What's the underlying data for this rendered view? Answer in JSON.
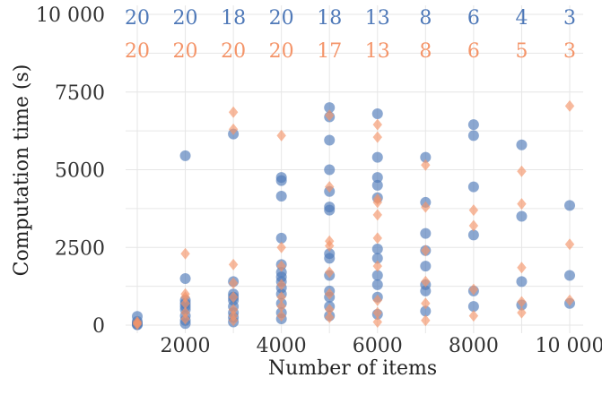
{
  "chart_data": {
    "type": "scatter",
    "title": "",
    "xlabel": "Number of items",
    "ylabel": "Computation time (s)",
    "xlim": [
      1000,
      10000
    ],
    "ylim": [
      0,
      10000
    ],
    "x_ticks": [
      2000,
      4000,
      6000,
      8000,
      10000
    ],
    "x_tick_labels": [
      "2000",
      "4000",
      "6000",
      "8000",
      "10 000"
    ],
    "y_ticks": [
      0,
      2500,
      5000,
      7500,
      10000
    ],
    "y_tick_labels": [
      "0",
      "2500",
      "5000",
      "7500",
      "10 000"
    ],
    "grid": true,
    "legend": "none",
    "count_rows": [
      {
        "color": "#4f79b8",
        "x": [
          1000,
          2000,
          3000,
          4000,
          5000,
          6000,
          7000,
          8000,
          9000,
          10000
        ],
        "labels": [
          "20",
          "20",
          "18",
          "20",
          "18",
          "13",
          "8",
          "6",
          "4",
          "3"
        ]
      },
      {
        "color": "#f4956a",
        "x": [
          1000,
          2000,
          3000,
          4000,
          5000,
          6000,
          7000,
          8000,
          9000,
          10000
        ],
        "labels": [
          "20",
          "20",
          "20",
          "20",
          "17",
          "13",
          "8",
          "6",
          "5",
          "3"
        ]
      }
    ],
    "series": [
      {
        "marker": "circle",
        "color": "#4f79b8",
        "points": [
          [
            1000,
            280
          ],
          [
            1000,
            120
          ],
          [
            1000,
            60
          ],
          [
            1000,
            20
          ],
          [
            1000,
            10
          ],
          [
            2000,
            5450
          ],
          [
            2000,
            1500
          ],
          [
            2000,
            800
          ],
          [
            2000,
            700
          ],
          [
            2000,
            600
          ],
          [
            2000,
            500
          ],
          [
            2000,
            300
          ],
          [
            2000,
            150
          ],
          [
            2000,
            50
          ],
          [
            3000,
            6150
          ],
          [
            3000,
            1400
          ],
          [
            3000,
            1000
          ],
          [
            3000,
            900
          ],
          [
            3000,
            800
          ],
          [
            3000,
            600
          ],
          [
            3000,
            400
          ],
          [
            3000,
            250
          ],
          [
            3000,
            100
          ],
          [
            4000,
            4750
          ],
          [
            4000,
            4650
          ],
          [
            4000,
            4150
          ],
          [
            4000,
            2800
          ],
          [
            4000,
            1950
          ],
          [
            4000,
            1700
          ],
          [
            4000,
            1550
          ],
          [
            4000,
            1400
          ],
          [
            4000,
            1200
          ],
          [
            4000,
            1000
          ],
          [
            4000,
            700
          ],
          [
            4000,
            400
          ],
          [
            4000,
            200
          ],
          [
            5000,
            7000
          ],
          [
            5000,
            6700
          ],
          [
            5000,
            5950
          ],
          [
            5000,
            5000
          ],
          [
            5000,
            4300
          ],
          [
            5000,
            3800
          ],
          [
            5000,
            3700
          ],
          [
            5000,
            2300
          ],
          [
            5000,
            2150
          ],
          [
            5000,
            1600
          ],
          [
            5000,
            1100
          ],
          [
            5000,
            900
          ],
          [
            5000,
            600
          ],
          [
            5000,
            300
          ],
          [
            6000,
            6800
          ],
          [
            6000,
            5400
          ],
          [
            6000,
            4750
          ],
          [
            6000,
            4500
          ],
          [
            6000,
            4100
          ],
          [
            6000,
            2450
          ],
          [
            6000,
            2150
          ],
          [
            6000,
            1600
          ],
          [
            6000,
            1300
          ],
          [
            6000,
            900
          ],
          [
            6000,
            350
          ],
          [
            7000,
            5400
          ],
          [
            7000,
            3950
          ],
          [
            7000,
            2950
          ],
          [
            7000,
            2400
          ],
          [
            7000,
            1900
          ],
          [
            7000,
            1300
          ],
          [
            7000,
            1100
          ],
          [
            7000,
            450
          ],
          [
            8000,
            6450
          ],
          [
            8000,
            6100
          ],
          [
            8000,
            4450
          ],
          [
            8000,
            2900
          ],
          [
            8000,
            1100
          ],
          [
            8000,
            600
          ],
          [
            9000,
            5800
          ],
          [
            9000,
            3500
          ],
          [
            9000,
            1400
          ],
          [
            9000,
            650
          ],
          [
            10000,
            3850
          ],
          [
            10000,
            1600
          ],
          [
            10000,
            700
          ]
        ]
      },
      {
        "marker": "diamond",
        "color": "#f4956a",
        "points": [
          [
            1000,
            100
          ],
          [
            1000,
            60
          ],
          [
            1000,
            30
          ],
          [
            2000,
            2300
          ],
          [
            2000,
            1000
          ],
          [
            2000,
            900
          ],
          [
            2000,
            700
          ],
          [
            2000,
            400
          ],
          [
            2000,
            200
          ],
          [
            3000,
            6850
          ],
          [
            3000,
            6300
          ],
          [
            3000,
            1950
          ],
          [
            3000,
            1350
          ],
          [
            3000,
            900
          ],
          [
            3000,
            500
          ],
          [
            3000,
            300
          ],
          [
            3000,
            150
          ],
          [
            4000,
            6100
          ],
          [
            4000,
            2500
          ],
          [
            4000,
            1900
          ],
          [
            4000,
            1300
          ],
          [
            4000,
            900
          ],
          [
            4000,
            600
          ],
          [
            4000,
            300
          ],
          [
            5000,
            6750
          ],
          [
            5000,
            4450
          ],
          [
            5000,
            2700
          ],
          [
            5000,
            2550
          ],
          [
            5000,
            1700
          ],
          [
            5000,
            1000
          ],
          [
            5000,
            500
          ],
          [
            5000,
            250
          ],
          [
            6000,
            6450
          ],
          [
            6000,
            6050
          ],
          [
            6000,
            4050
          ],
          [
            6000,
            3950
          ],
          [
            6000,
            3550
          ],
          [
            6000,
            2800
          ],
          [
            6000,
            1900
          ],
          [
            6000,
            800
          ],
          [
            6000,
            400
          ],
          [
            6000,
            100
          ],
          [
            7000,
            5150
          ],
          [
            7000,
            3800
          ],
          [
            7000,
            2400
          ],
          [
            7000,
            1400
          ],
          [
            7000,
            700
          ],
          [
            7000,
            150
          ],
          [
            8000,
            3700
          ],
          [
            8000,
            3200
          ],
          [
            8000,
            1150
          ],
          [
            8000,
            300
          ],
          [
            9000,
            4950
          ],
          [
            9000,
            3900
          ],
          [
            9000,
            1850
          ],
          [
            9000,
            750
          ],
          [
            9000,
            400
          ],
          [
            10000,
            7050
          ],
          [
            10000,
            2600
          ],
          [
            10000,
            800
          ]
        ]
      }
    ]
  }
}
